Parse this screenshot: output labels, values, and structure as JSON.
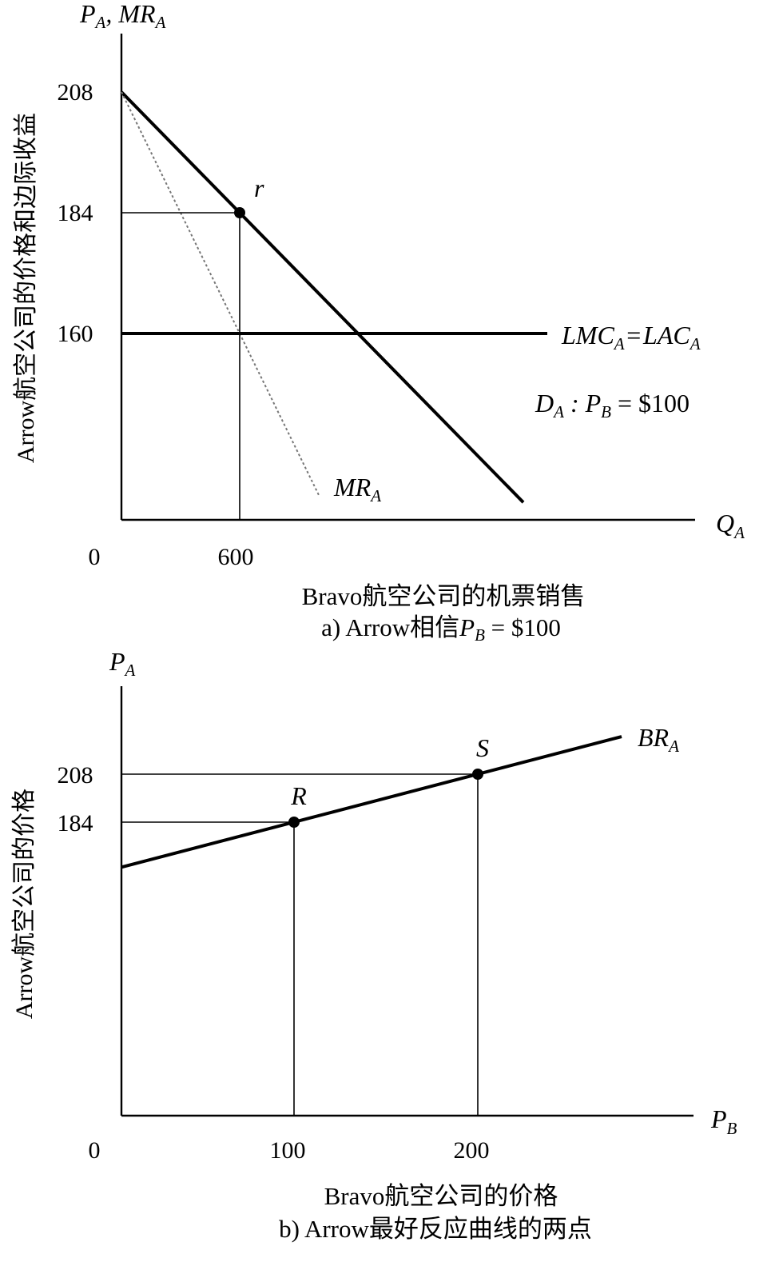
{
  "chart_data": [
    {
      "type": "line",
      "caption": "a) Arrow相信P_B = $100",
      "xlabel": "Bravo航空公司的机票销售",
      "ylabel": "Arrow航空公司的价格和边际收益",
      "x_axis_symbol": "Q",
      "x_axis_symbol_sub": "A",
      "y_axis_symbol": "P_A, MR_A",
      "origin_label": "0",
      "xlim": [
        0,
        2000
      ],
      "ylim": [
        124,
        230
      ],
      "x_ticks": [
        600
      ],
      "y_ticks": [
        208,
        184,
        160
      ],
      "series": [
        {
          "name": "D_A : P_B = $100",
          "x": [
            0,
            2000
          ],
          "y": [
            208,
            128
          ]
        },
        {
          "name": "MR_A",
          "x": [
            0,
            1000
          ],
          "y": [
            208,
            128
          ]
        },
        {
          "name": "LMC_A = LAC_A",
          "x": [
            0,
            2200
          ],
          "y": [
            160,
            160
          ]
        }
      ],
      "points": [
        {
          "label": "r",
          "x": 600,
          "y": 184
        }
      ],
      "labels": {
        "demand": {
          "D": "D",
          "D_sub": "A",
          "mid": " : ",
          "P": "P",
          "P_sub": "B",
          "rest": " = $100"
        },
        "mr": {
          "main": "MR",
          "sub": "A"
        },
        "lmc": {
          "a": "LMC",
          "a_sub": "A",
          "eq": " = ",
          "b": "LAC",
          "b_sub": "A"
        }
      }
    },
    {
      "type": "line",
      "caption": "b) Arrow最好反应曲线的两点",
      "xlabel": "Bravo航空公司的价格",
      "ylabel": "Arrow航空公司的价格",
      "x_axis_symbol": "P",
      "x_axis_symbol_sub": "B",
      "y_axis_symbol": "P",
      "y_axis_symbol_sub": "A",
      "origin_label": "0",
      "xlim": [
        0,
        330
      ],
      "ylim": [
        0,
        280
      ],
      "x_ticks": [
        100,
        200
      ],
      "y_ticks": [
        208,
        184
      ],
      "series": [
        {
          "name": "BR_A",
          "x": [
            0,
            290
          ],
          "y": [
            160,
            230
          ]
        }
      ],
      "points": [
        {
          "label": "R",
          "x": 100,
          "y": 184
        },
        {
          "label": "S",
          "x": 200,
          "y": 208
        }
      ],
      "labels": {
        "br": {
          "main": "BR",
          "sub": "A"
        }
      }
    }
  ]
}
